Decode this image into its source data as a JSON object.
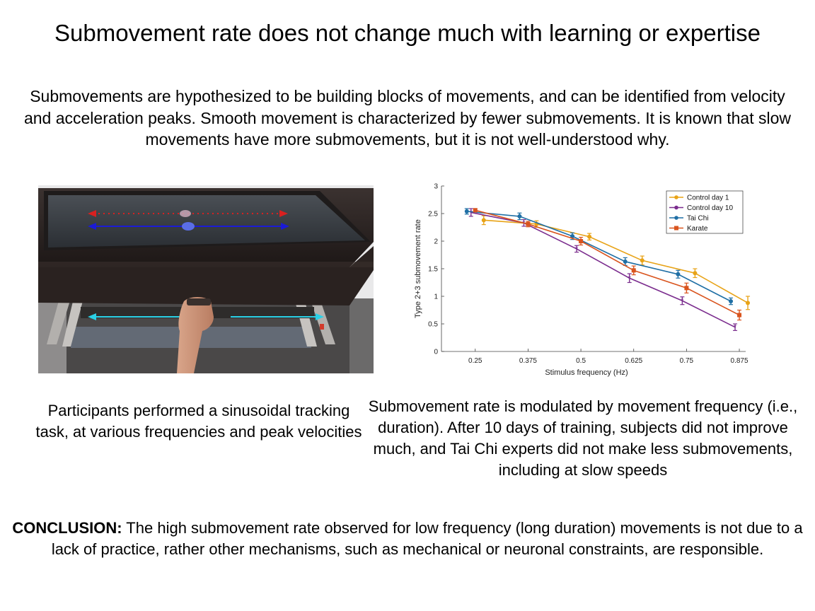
{
  "title": "Submovement rate does not change much with learning or expertise",
  "intro": "Submovements are hypothesized to be building blocks of movements, and can be identified from velocity and acceleration peaks. Smooth movement is characterized by fewer submovements. It is known that slow movements have more submovements, but it is not well-understood why.",
  "photo_caption": "Participants performed a sinusoidal tracking task, at various frequencies and peak velocities",
  "chart_caption": "Submovement rate is modulated by movement frequency (i.e., duration). After 10 days of training, subjects did not improve much, and Tai Chi experts did not make less submovements, including at slow speeds",
  "conclusion": {
    "label": "CONCLUSION:",
    "text": " The high submovement rate observed for low frequency (long duration) movements is not due to a lack of practice, rather other mechanisms, such as mechanical or neuronal constraints, are responsible."
  },
  "chart_data": {
    "type": "line",
    "xlabel": "Stimulus frequency (Hz)",
    "ylabel": "Type 2+3 submovement rate",
    "x": [
      0.25,
      0.375,
      0.5,
      0.625,
      0.75,
      0.875
    ],
    "x_tick_labels": [
      "0.25",
      "0.375",
      "0.5",
      "0.625",
      "0.75",
      "0.875"
    ],
    "y_ticks": [
      0,
      0.5,
      1,
      1.5,
      2,
      2.5,
      3
    ],
    "y_tick_labels": [
      "0",
      "0.5",
      "1",
      "1.5",
      "2",
      "2.5",
      "3"
    ],
    "xlim": [
      0.17,
      0.89
    ],
    "ylim": [
      0,
      3
    ],
    "legend_position": "top-right",
    "grid": false,
    "series": [
      {
        "name": "Control day 1",
        "color": "#e8a317",
        "marker": "circle",
        "values": [
          2.38,
          2.31,
          2.08,
          1.65,
          1.42,
          0.88
        ],
        "errors": [
          0.08,
          0.06,
          0.06,
          0.08,
          0.08,
          0.12
        ]
      },
      {
        "name": "Control day 10",
        "color": "#7b2d8e",
        "marker": "star",
        "values": [
          2.52,
          2.33,
          1.86,
          1.33,
          0.92,
          0.44
        ],
        "errors": [
          0.07,
          0.06,
          0.06,
          0.08,
          0.07,
          0.06
        ]
      },
      {
        "name": "Tai Chi",
        "color": "#1f6fa5",
        "marker": "circle",
        "values": [
          2.54,
          2.45,
          2.09,
          1.63,
          1.4,
          0.91
        ],
        "errors": [
          0.05,
          0.06,
          0.06,
          0.07,
          0.07,
          0.06
        ]
      },
      {
        "name": "Karate",
        "color": "#d9541e",
        "marker": "square",
        "values": [
          2.56,
          2.31,
          2.0,
          1.47,
          1.15,
          0.66
        ],
        "errors": [
          0.03,
          0.05,
          0.07,
          0.08,
          0.09,
          0.09
        ]
      }
    ]
  }
}
